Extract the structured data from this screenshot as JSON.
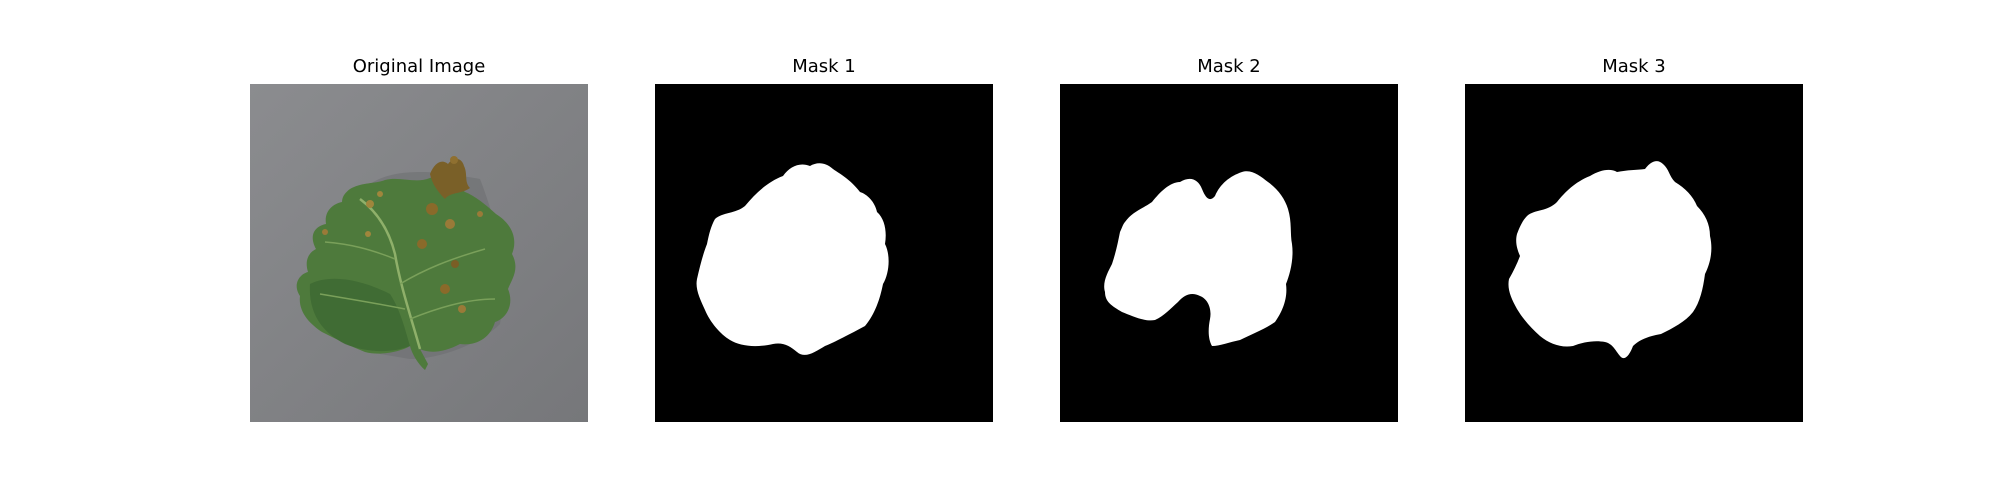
{
  "figure": {
    "panels": [
      {
        "title": "Original Image"
      },
      {
        "title": "Mask 1"
      },
      {
        "title": "Mask 2"
      },
      {
        "title": "Mask 3"
      }
    ]
  },
  "colors": {
    "background_gray": "#858689",
    "leaf_green": "#4e7a3c",
    "leaf_dark": "#3b612d",
    "lesion_brown": "#8a6a2a",
    "mask_background": "#000000",
    "mask_foreground": "#ffffff"
  }
}
